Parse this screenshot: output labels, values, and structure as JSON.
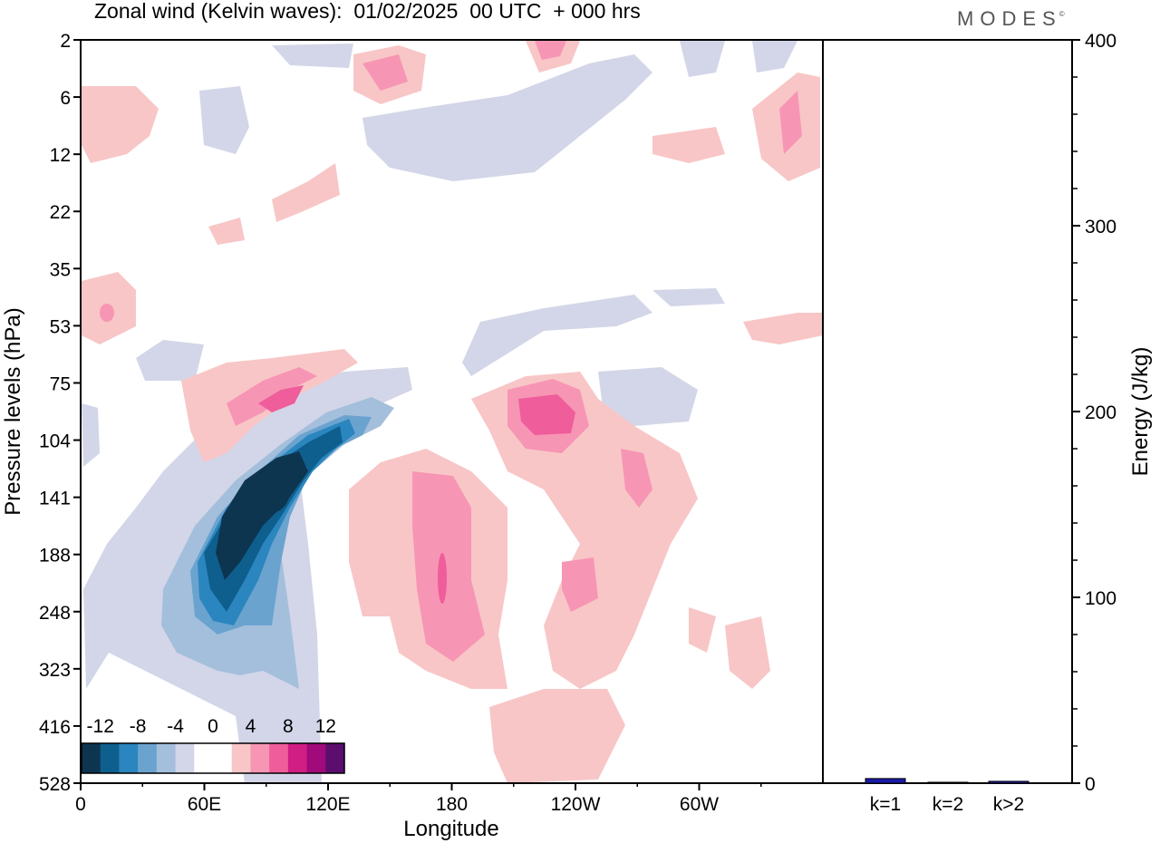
{
  "header": {
    "title": "Zonal wind (Kelvin waves):  01/02/2025  00 UTC  + 000 hrs",
    "logo": "MODES",
    "logo_mark": "©"
  },
  "colors": {
    "neg": [
      "#0d3550",
      "#0e5f8e",
      "#2b86bf",
      "#6ba3cf",
      "#a4bfdc",
      "#d3d6e8"
    ],
    "zero": "#ffffff",
    "pos": [
      "#f8c6c6",
      "#f795b4",
      "#ef5d9a",
      "#d01e84",
      "#a00a7a",
      "#5b0e6e"
    ],
    "bar": "#1a1aa8"
  },
  "chart_data": [
    {
      "type": "heatmap",
      "variable": "Zonal wind (Kelvin waves)",
      "xlabel": "Longitude",
      "ylabel": "Pressure levels (hPa)",
      "x_ticks": [
        "0",
        "60E",
        "120E",
        "180",
        "120W",
        "60W"
      ],
      "x_tick_values": [
        0,
        60,
        120,
        180,
        240,
        300
      ],
      "xlim": [
        0,
        360
      ],
      "y_ticks": [
        "2",
        "6",
        "12",
        "22",
        "35",
        "53",
        "75",
        "104",
        "141",
        "188",
        "248",
        "323",
        "416",
        "528"
      ],
      "colorbar": {
        "labels": [
          "-12",
          "-8",
          "-4",
          "0",
          "4",
          "8",
          "12"
        ],
        "levels": [
          -14,
          -12,
          -10,
          -8,
          -6,
          -4,
          -2,
          2,
          4,
          6,
          8,
          10,
          12,
          14
        ]
      },
      "features": [
        {
          "sign": "neg",
          "peak": -14,
          "lon": 88,
          "level": 141,
          "description_level": "upper troposphere"
        },
        {
          "sign": "neg",
          "peak": -10,
          "lon": 65,
          "level": 188
        },
        {
          "sign": "pos",
          "peak": 8,
          "lon": 112,
          "level": 75
        },
        {
          "sign": "pos",
          "peak": 8,
          "lon": 228,
          "level": 89
        },
        {
          "sign": "pos",
          "peak": 6,
          "lon": 175,
          "level": 188
        },
        {
          "sign": "neg",
          "peak": -6,
          "lon": 275,
          "level": 89
        }
      ]
    },
    {
      "type": "bar",
      "categories": [
        "k=1",
        "k=2",
        "k>2"
      ],
      "values": [
        2.5,
        0.5,
        1
      ],
      "ylabel": "Energy (J/kg)",
      "ylim": [
        0,
        400
      ],
      "y_ticks": [
        "0",
        "100",
        "200",
        "300",
        "400"
      ]
    }
  ]
}
